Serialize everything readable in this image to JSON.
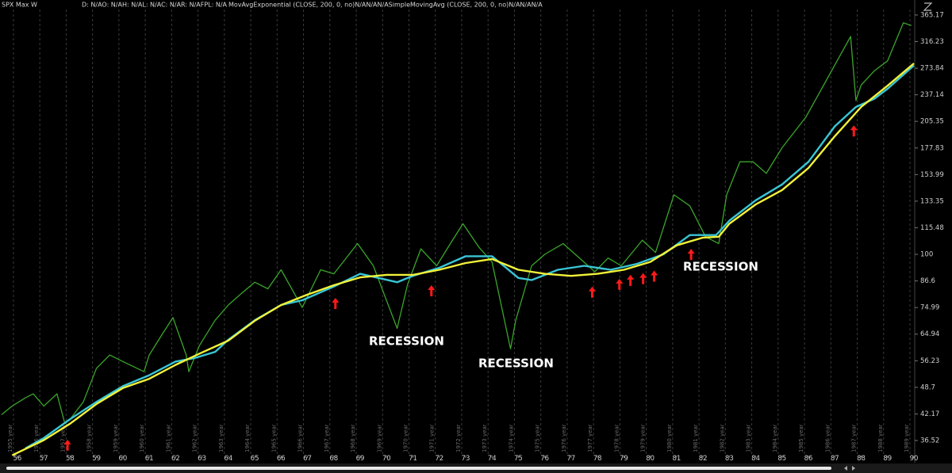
{
  "header": {
    "symbol": "SPX Max W",
    "quote": "D: N/AO: N/AH: N/AL: N/AC: N/AR: N/AFPL: N/A",
    "studies": "MovAvgExponential (CLOSE, 200, 0, no)N/AN/AN/ASimpleMovingAvg (CLOSE, 200, 0, no)N/AN/AN/A"
  },
  "chart_data": {
    "type": "line",
    "log_scale": true,
    "xlim": [
      1955.34,
      1990.03
    ],
    "ylim": [
      33.66,
      382.7
    ],
    "yticks": [
      36.52,
      42.17,
      48.7,
      56.23,
      64.94,
      74.99,
      86.6,
      100,
      115.48,
      133.35,
      153.99,
      177.83,
      205.35,
      237.14,
      273.84,
      316.23,
      365.17
    ],
    "xticks": [
      {
        "value": 1956,
        "label": "56"
      },
      {
        "value": 1957,
        "label": "57"
      },
      {
        "value": 1958,
        "label": "58"
      },
      {
        "value": 1959,
        "label": "59"
      },
      {
        "value": 1960,
        "label": "60"
      },
      {
        "value": 1961,
        "label": "61"
      },
      {
        "value": 1962,
        "label": "62"
      },
      {
        "value": 1963,
        "label": "63"
      },
      {
        "value": 1964,
        "label": "64"
      },
      {
        "value": 1965,
        "label": "65"
      },
      {
        "value": 1966,
        "label": "66"
      },
      {
        "value": 1967,
        "label": "67"
      },
      {
        "value": 1968,
        "label": "68"
      },
      {
        "value": 1969,
        "label": "69"
      },
      {
        "value": 1970,
        "label": "70"
      },
      {
        "value": 1971,
        "label": "71"
      },
      {
        "value": 1972,
        "label": "72"
      },
      {
        "value": 1973,
        "label": "73"
      },
      {
        "value": 1974,
        "label": "74"
      },
      {
        "value": 1975,
        "label": "75"
      },
      {
        "value": 1976,
        "label": "76"
      },
      {
        "value": 1977,
        "label": "77"
      },
      {
        "value": 1978,
        "label": "78"
      },
      {
        "value": 1979,
        "label": "79"
      },
      {
        "value": 1980,
        "label": "80"
      },
      {
        "value": 1981,
        "label": "81"
      },
      {
        "value": 1982,
        "label": "82"
      },
      {
        "value": 1983,
        "label": "83"
      },
      {
        "value": 1984,
        "label": "84"
      },
      {
        "value": 1985,
        "label": "85"
      },
      {
        "value": 1986,
        "label": "86"
      },
      {
        "value": 1987,
        "label": "87"
      },
      {
        "value": 1988,
        "label": "88"
      },
      {
        "value": 1989,
        "label": "89"
      },
      {
        "value": 1990,
        "label": "90"
      }
    ],
    "year_lines": [
      "1955 year",
      "1956 year",
      "1957 year",
      "1958 year",
      "1959 year",
      "1960 year",
      "1961 year",
      "1962 year",
      "1963 year",
      "1964 year",
      "1965 year",
      "1966 year",
      "1967 year",
      "1968 year",
      "1969 year",
      "1970 year",
      "1971 year",
      "1972 year",
      "1973 year",
      "1974 year",
      "1975 year",
      "1976 year",
      "1977 year",
      "1978 year",
      "1979 year",
      "1980 year",
      "1981 year",
      "1982 year",
      "1983 year",
      "1984 year",
      "1985 year",
      "1986 year",
      "1987 year",
      "1988 year",
      "1989 year"
    ],
    "series": [
      {
        "color": "#3aa52a",
        "x": [
          1955.4,
          1955.8,
          1956.3,
          1956.6,
          1957.0,
          1957.5,
          1957.8,
          1958.0,
          1958.5,
          1959.0,
          1959.5,
          1960.0,
          1960.8,
          1961.0,
          1961.5,
          1961.9,
          1962.4,
          1962.5,
          1962.9,
          1963.5,
          1964.0,
          1964.5,
          1965.0,
          1965.5,
          1966.0,
          1966.8,
          1967.5,
          1968.0,
          1968.9,
          1969.5,
          1970.4,
          1970.8,
          1971.3,
          1971.9,
          1972.5,
          1972.9,
          1973.5,
          1974.0,
          1974.7,
          1974.9,
          1975.5,
          1976.0,
          1976.7,
          1977.0,
          1977.9,
          1978.4,
          1978.9,
          1979.7,
          1980.2,
          1980.9,
          1981.5,
          1982.1,
          1982.6,
          1982.9,
          1983.4,
          1983.9,
          1984.4,
          1985.0,
          1985.9,
          1986.5,
          1987.6,
          1987.8,
          1988.0,
          1988.5,
          1989.0,
          1989.6,
          1989.9
        ],
        "values": [
          42,
          44,
          46,
          47,
          44,
          47,
          40,
          41,
          45,
          54,
          58,
          56,
          53,
          58,
          65,
          71,
          58,
          53,
          61,
          70,
          76,
          81,
          86,
          83,
          92,
          75,
          92,
          90,
          106,
          94,
          67,
          85,
          103,
          94,
          108,
          118,
          104,
          96,
          60,
          70,
          94,
          100,
          106,
          102,
          91,
          98,
          94,
          108,
          101,
          138,
          130,
          110,
          106,
          138,
          165,
          165,
          155,
          178,
          210,
          245,
          325,
          230,
          250,
          270,
          285,
          350,
          345
        ]
      },
      {
        "color": "#39c6d6",
        "x": [
          1956.3,
          1957,
          1958,
          1959,
          1960,
          1961,
          1962,
          1962.7,
          1963.5,
          1964,
          1965,
          1966,
          1966.8,
          1968,
          1969,
          1970.4,
          1971,
          1972,
          1973,
          1974,
          1975,
          1975.5,
          1976.5,
          1977.5,
          1978.5,
          1979.5,
          1980.5,
          1981.5,
          1982.5,
          1983,
          1984,
          1985,
          1986,
          1987,
          1987.8,
          1988.5,
          1989,
          1990
        ],
        "values": [
          35,
          37,
          41,
          45,
          49,
          52,
          56,
          57,
          59,
          63,
          70,
          76,
          78,
          84,
          90,
          86,
          89,
          93,
          99,
          99,
          88,
          87,
          92,
          94,
          92,
          95,
          100,
          111,
          111,
          120,
          134,
          146,
          165,
          200,
          222,
          232,
          245,
          278
        ]
      },
      {
        "color": "#f2f23a",
        "x": [
          1955.8,
          1957,
          1958,
          1959,
          1960,
          1961,
          1962,
          1963,
          1964,
          1965,
          1966,
          1967,
          1968,
          1969,
          1970,
          1971,
          1972,
          1973,
          1974,
          1975,
          1976,
          1977,
          1978,
          1979,
          1980,
          1981,
          1982,
          1982.6,
          1983,
          1984,
          1985,
          1986,
          1987,
          1988,
          1989,
          1990
        ],
        "values": [
          33.7,
          36.6,
          40,
          44.5,
          48.5,
          51,
          55,
          58.8,
          62.7,
          69.8,
          76,
          80.4,
          84.6,
          88.3,
          89.5,
          89.5,
          92,
          95.4,
          97.5,
          92,
          90,
          89,
          90,
          92,
          96,
          105,
          109.5,
          110,
          118,
          131,
          141.6,
          159.6,
          189.5,
          222,
          249,
          281
        ]
      }
    ],
    "markers": {
      "color": "#ff1a1a",
      "x": [
        1957.9,
        1968.06,
        1971.7,
        1977.8,
        1978.83,
        1979.25,
        1979.73,
        1980.15,
        1981.55,
        1987.72
      ],
      "y": [
        36.7,
        79,
        84.6,
        84,
        87.6,
        89.5,
        90.4,
        91.6,
        103,
        201
      ]
    },
    "annotations": [
      "RECESSION",
      "RECESSION",
      "RECESSION"
    ]
  }
}
